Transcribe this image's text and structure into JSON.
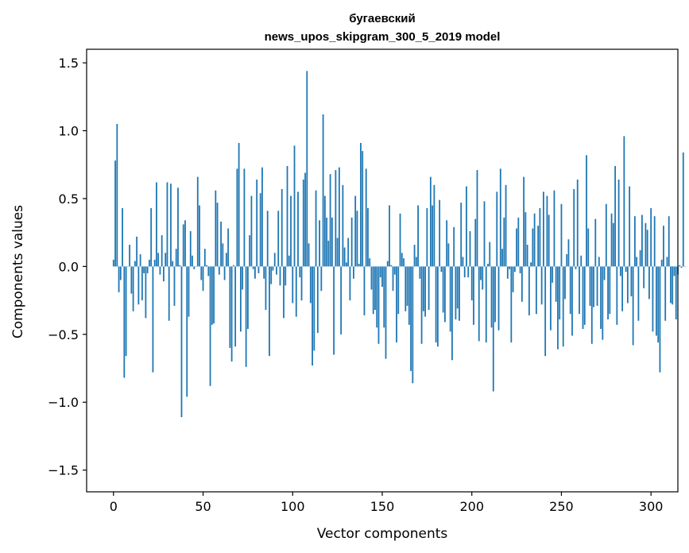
{
  "chart_data": {
    "type": "bar",
    "title_line1": "бугаевский",
    "title_line2": "news_upos_skipgram_300_5_2019 model",
    "xlabel": "Vector components",
    "ylabel": "Components values",
    "xlim": [
      -15,
      315
    ],
    "ylim": [
      -1.66,
      1.6
    ],
    "x_ticks": [
      0,
      50,
      100,
      150,
      200,
      250,
      300
    ],
    "x_tick_labels": [
      "0",
      "50",
      "100",
      "150",
      "200",
      "250",
      "300"
    ],
    "y_ticks": [
      -1.5,
      -1.0,
      -0.5,
      0.0,
      0.5,
      1.0,
      1.5
    ],
    "y_tick_labels": [
      "−1.5",
      "−1.0",
      "−0.5",
      "0.0",
      "0.5",
      "1.0",
      "1.5"
    ],
    "bar_color": "#1f77b4",
    "grid": false,
    "values": [
      0.05,
      0.78,
      1.05,
      -0.19,
      -0.1,
      0.43,
      -0.82,
      -0.66,
      0.0,
      0.16,
      -0.2,
      -0.33,
      0.04,
      0.22,
      -0.28,
      0.09,
      -0.25,
      -0.05,
      -0.38,
      -0.05,
      0.05,
      0.43,
      -0.78,
      0.05,
      0.62,
      0.1,
      -0.06,
      0.23,
      -0.11,
      0.1,
      0.62,
      -0.4,
      0.61,
      0.04,
      -0.29,
      0.13,
      0.58,
      0.01,
      -1.11,
      0.31,
      0.34,
      -0.96,
      -0.37,
      0.26,
      0.08,
      -0.02,
      0.0,
      0.66,
      0.45,
      -0.1,
      -0.18,
      0.13,
      0.01,
      -0.07,
      -0.88,
      -0.43,
      -0.42,
      0.56,
      0.47,
      -0.06,
      0.33,
      0.17,
      -0.1,
      0.1,
      0.28,
      -0.6,
      -0.7,
      0.01,
      -0.59,
      0.72,
      0.91,
      -0.48,
      -0.17,
      0.72,
      -0.74,
      -0.46,
      0.23,
      0.52,
      -0.02,
      -0.09,
      0.64,
      -0.05,
      0.54,
      0.73,
      -0.09,
      -0.32,
      0.41,
      -0.66,
      -0.13,
      -0.03,
      0.1,
      -0.06,
      0.41,
      -0.14,
      0.57,
      -0.38,
      -0.14,
      0.74,
      0.08,
      0.52,
      -0.27,
      0.89,
      -0.37,
      0.55,
      -0.08,
      -0.25,
      0.64,
      0.69,
      1.44,
      0.17,
      -0.27,
      -0.73,
      -0.62,
      0.56,
      -0.49,
      0.34,
      -0.18,
      1.12,
      0.52,
      0.36,
      0.19,
      0.68,
      0.36,
      -0.65,
      0.71,
      0.21,
      0.73,
      -0.5,
      0.6,
      0.14,
      0.03,
      0.21,
      -0.25,
      0.36,
      -0.09,
      0.52,
      0.41,
      0.02,
      0.91,
      0.85,
      -0.36,
      0.72,
      0.43,
      0.06,
      -0.17,
      -0.35,
      -0.32,
      -0.45,
      -0.57,
      -0.08,
      -0.15,
      -0.45,
      -0.68,
      0.04,
      0.45,
      0.01,
      -0.18,
      -0.06,
      -0.56,
      -0.35,
      0.39,
      0.1,
      0.06,
      -0.33,
      -0.29,
      -0.43,
      -0.77,
      -0.86,
      0.16,
      0.07,
      0.45,
      -0.09,
      -0.57,
      -0.33,
      -0.37,
      0.43,
      -0.32,
      0.66,
      0.45,
      0.6,
      -0.56,
      -0.59,
      0.49,
      -0.04,
      -0.34,
      -0.41,
      0.34,
      0.17,
      -0.48,
      -0.69,
      0.29,
      -0.39,
      -0.31,
      -0.4,
      0.47,
      0.07,
      -0.08,
      0.59,
      -0.08,
      0.26,
      -0.25,
      -0.43,
      0.35,
      0.71,
      -0.55,
      -0.1,
      -0.17,
      0.48,
      -0.56,
      0.02,
      0.18,
      -0.45,
      -0.92,
      -0.41,
      0.55,
      -0.47,
      0.72,
      0.13,
      0.36,
      0.6,
      -0.09,
      -0.02,
      -0.56,
      -0.19,
      -0.04,
      0.28,
      0.36,
      -0.05,
      -0.26,
      0.66,
      0.4,
      0.16,
      -0.36,
      0.03,
      0.28,
      0.39,
      -0.35,
      0.3,
      0.43,
      -0.28,
      0.55,
      -0.66,
      0.52,
      0.38,
      -0.47,
      -0.12,
      0.56,
      -0.26,
      -0.61,
      -0.39,
      0.46,
      -0.59,
      -0.24,
      0.09,
      0.2,
      -0.35,
      -0.51,
      0.57,
      -0.02,
      0.64,
      -0.35,
      0.08,
      -0.46,
      -0.43,
      0.82,
      0.28,
      -0.29,
      -0.57,
      -0.3,
      0.35,
      -0.29,
      0.07,
      -0.46,
      -0.54,
      -0.1,
      0.46,
      -0.39,
      -0.35,
      0.39,
      0.32,
      0.74,
      -0.43,
      0.64,
      -0.07,
      -0.33,
      0.96,
      -0.04,
      -0.27,
      0.59,
      -0.22,
      -0.58,
      0.37,
      0.07,
      -0.4,
      0.12,
      0.38,
      -0.16,
      0.32,
      0.27,
      -0.24,
      0.43,
      -0.48,
      0.37,
      -0.51,
      -0.56,
      -0.78,
      0.05,
      0.3,
      -0.4,
      0.07,
      0.37,
      -0.27,
      -0.28,
      -0.07,
      -0.39,
      -0.06,
      0.01,
      -0.01,
      0.84,
      0.0
    ]
  }
}
